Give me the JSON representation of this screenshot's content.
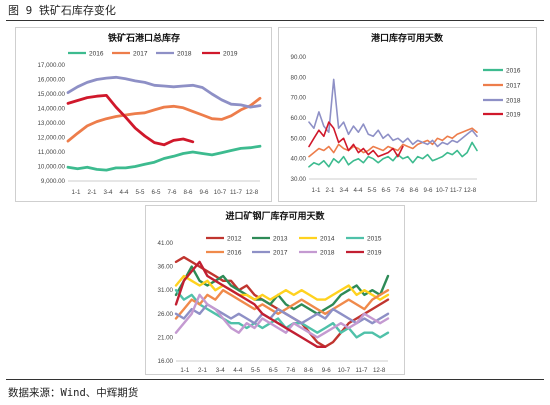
{
  "figure": {
    "title": "图 9  铁矿石库存变化",
    "source": "数据来源：Wind、中辉期货"
  },
  "chart_data": [
    {
      "type": "line",
      "title": "铁矿石港口总库存",
      "x_ticks": [
        "1-1",
        "2-1",
        "3-4",
        "4-4",
        "5-5",
        "6-5",
        "7-6",
        "8-6",
        "9-6",
        "10-7",
        "11-7",
        "12-8"
      ],
      "ylim": [
        9000,
        17000
      ],
      "y_ticks": [
        "9,000.00",
        "10,000.00",
        "11,000.00",
        "12,000.00",
        "13,000.00",
        "14,000.00",
        "15,000.00",
        "16,000.00",
        "17,000.00"
      ],
      "legend": "top",
      "series": [
        {
          "name": "2016",
          "color": "#3dbb8f",
          "values": [
            9950,
            9850,
            9950,
            9800,
            9750,
            9900,
            9900,
            10000,
            10150,
            10300,
            10550,
            10700,
            10900,
            11000,
            10900,
            10800,
            10950,
            11100,
            11250,
            11300,
            11400
          ]
        },
        {
          "name": "2017",
          "color": "#ed7d4b",
          "values": [
            11750,
            12300,
            12800,
            13100,
            13300,
            13450,
            13550,
            13650,
            13700,
            13900,
            14100,
            14150,
            14050,
            13800,
            13550,
            13300,
            13250,
            13500,
            13900,
            14200,
            14700
          ]
        },
        {
          "name": "2018",
          "color": "#8e90c6",
          "values": [
            15100,
            15500,
            15800,
            16000,
            16100,
            16150,
            16050,
            15900,
            15800,
            15600,
            15550,
            15500,
            15550,
            15600,
            15450,
            15000,
            14600,
            14300,
            14250,
            14100,
            14200
          ]
        },
        {
          "name": "2019",
          "color": "#d0182b",
          "values": [
            14350,
            14550,
            14750,
            14850,
            14900,
            14100,
            13400,
            12650,
            12100,
            11650,
            11500,
            11800,
            11900,
            11700,
            null,
            null,
            null,
            null,
            null,
            null,
            null
          ]
        }
      ]
    },
    {
      "type": "line",
      "title": "港口库存可用天数",
      "x_ticks": [
        "1-1",
        "2-1",
        "3-4",
        "4-4",
        "5-5",
        "6-5",
        "7-6",
        "8-6",
        "9-6",
        "10-7",
        "11-7",
        "12-8"
      ],
      "ylim": [
        30,
        90
      ],
      "y_ticks": [
        "30.00",
        "40.00",
        "50.00",
        "60.00",
        "70.00",
        "80.00",
        "90.00"
      ],
      "legend": "right",
      "series": [
        {
          "name": "2016",
          "color": "#3dbb8f",
          "values": [
            36,
            38,
            37,
            39,
            36,
            40,
            38,
            41,
            37,
            39,
            40,
            38,
            41,
            40,
            38,
            40,
            41,
            39,
            42,
            40,
            41,
            38,
            41,
            40,
            42,
            39,
            40,
            41,
            43,
            42,
            44,
            41,
            43,
            48,
            44
          ]
        },
        {
          "name": "2017",
          "color": "#ed7d4b",
          "values": [
            41,
            43,
            45,
            44,
            46,
            43,
            47,
            45,
            44,
            46,
            45,
            43,
            44,
            46,
            45,
            44,
            46,
            45,
            44,
            47,
            46,
            45,
            47,
            48,
            49,
            47,
            50,
            49,
            51,
            50,
            52,
            53,
            54,
            55,
            53
          ]
        },
        {
          "name": "2018",
          "color": "#8e90c6",
          "values": [
            58,
            55,
            63,
            56,
            53,
            79,
            55,
            58,
            52,
            56,
            53,
            57,
            52,
            51,
            54,
            50,
            52,
            49,
            50,
            48,
            50,
            47,
            49,
            48,
            47,
            49,
            46,
            48,
            47,
            49,
            48,
            50,
            52,
            54,
            51
          ]
        },
        {
          "name": "2019",
          "color": "#d0182b",
          "values": [
            46,
            50,
            54,
            51,
            58,
            55,
            48,
            50,
            44,
            47,
            43,
            45,
            42,
            44,
            41,
            42,
            43,
            45,
            41,
            46,
            null,
            null,
            null,
            null,
            null,
            null,
            null,
            null,
            null,
            null,
            null,
            null,
            null,
            null,
            null
          ]
        }
      ]
    },
    {
      "type": "line",
      "title": "进口矿钢厂库存可用天数",
      "x_ticks": [
        "1-1",
        "2-1",
        "3-4",
        "4-4",
        "5-5",
        "6-5",
        "7-6",
        "8-6",
        "9-6",
        "10-7",
        "11-7",
        "12-8"
      ],
      "ylim": [
        16,
        41
      ],
      "y_ticks": [
        "16.00",
        "21.00",
        "26.00",
        "31.00",
        "36.00",
        "41.00"
      ],
      "legend": "top",
      "series": [
        {
          "name": "2012",
          "color": "#c0352f",
          "values": [
            37,
            38,
            37,
            36,
            35,
            34,
            33,
            33,
            31,
            32,
            30,
            29,
            28,
            27,
            26,
            25,
            24,
            22,
            20,
            19,
            20,
            22,
            24,
            25,
            26,
            27,
            28,
            29
          ]
        },
        {
          "name": "2013",
          "color": "#2e8b57",
          "values": [
            30,
            33,
            36,
            33,
            32,
            33,
            34,
            32,
            31,
            30,
            29,
            29,
            28,
            30,
            28,
            27,
            28,
            27,
            26,
            27,
            28,
            30,
            31,
            32,
            30,
            31,
            30,
            34
          ]
        },
        {
          "name": "2014",
          "color": "#ffd21f",
          "values": [
            32,
            34,
            33,
            32,
            33,
            31,
            32,
            31,
            30,
            30,
            29,
            30,
            29,
            30,
            31,
            30,
            31,
            30,
            29,
            29,
            30,
            31,
            32,
            30,
            31,
            30,
            29,
            30
          ]
        },
        {
          "name": "2015",
          "color": "#4fc1a9",
          "values": [
            31,
            29,
            30,
            28,
            27,
            26,
            25,
            24,
            24,
            23,
            24,
            23,
            24,
            25,
            23,
            24,
            24,
            23,
            22,
            23,
            24,
            22,
            23,
            21,
            22,
            22,
            21,
            22
          ]
        },
        {
          "name": "2016",
          "color": "#f08a4b",
          "values": [
            25,
            27,
            29,
            28,
            30,
            29,
            31,
            30,
            29,
            28,
            27,
            28,
            27,
            26,
            27,
            28,
            29,
            28,
            27,
            26,
            27,
            28,
            29,
            28,
            27,
            29,
            30,
            31
          ]
        },
        {
          "name": "2017",
          "color": "#8e90c6",
          "values": [
            26,
            25,
            27,
            26,
            28,
            27,
            26,
            25,
            26,
            25,
            24,
            26,
            25,
            27,
            26,
            25,
            24,
            25,
            26,
            25,
            27,
            26,
            25,
            24,
            25,
            24,
            25,
            26
          ]
        },
        {
          "name": "2018",
          "color": "#c49ad1",
          "values": [
            22,
            24,
            26,
            30,
            28,
            27,
            25,
            23,
            22,
            24,
            23,
            25,
            24,
            23,
            22,
            24,
            23,
            22,
            21,
            22,
            23,
            24,
            23,
            24,
            26,
            25,
            24,
            25
          ]
        },
        {
          "name": "2019",
          "color": "#c21f32",
          "values": [
            28,
            33,
            35,
            37,
            34,
            33,
            32,
            31,
            30,
            29,
            28,
            26,
            25,
            24,
            23,
            22,
            21,
            20,
            19,
            19,
            null,
            null,
            null,
            null,
            null,
            null,
            null,
            null
          ]
        }
      ]
    }
  ]
}
